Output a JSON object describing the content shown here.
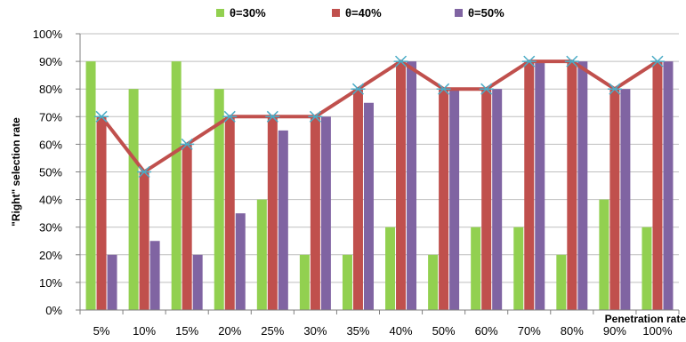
{
  "chart_data": {
    "type": "bar",
    "categories": [
      "5%",
      "10%",
      "15%",
      "20%",
      "25%",
      "30%",
      "35%",
      "40%",
      "50%",
      "60%",
      "70%",
      "80%",
      "90%",
      "100%"
    ],
    "series": [
      {
        "name": "θ=30%",
        "color": "#92d050",
        "values": [
          90,
          80,
          90,
          80,
          40,
          20,
          20,
          30,
          20,
          30,
          30,
          20,
          40,
          30
        ]
      },
      {
        "name": "θ=40%",
        "color": "#c0504d",
        "values": [
          70,
          50,
          60,
          70,
          70,
          70,
          80,
          90,
          80,
          80,
          90,
          90,
          80,
          90
        ]
      },
      {
        "name": "θ=50%",
        "color": "#8064a2",
        "values": [
          20,
          25,
          20,
          35,
          65,
          70,
          75,
          90,
          80,
          80,
          90,
          90,
          80,
          90
        ]
      }
    ],
    "line": {
      "values": [
        70,
        50,
        60,
        70,
        70,
        70,
        80,
        90,
        80,
        80,
        90,
        90,
        80,
        90
      ],
      "color": "#c0504d",
      "marker": "asterisk",
      "marker_color": "#4bacc6"
    },
    "xlabel": "Penetration rate",
    "ylabel": "\"Right\" selection rate",
    "ylim": [
      0,
      100
    ],
    "yticks": [
      "0%",
      "10%",
      "20%",
      "30%",
      "40%",
      "50%",
      "60%",
      "70%",
      "80%",
      "90%",
      "100%"
    ],
    "grid": "horizontal",
    "legend_position": "top"
  }
}
